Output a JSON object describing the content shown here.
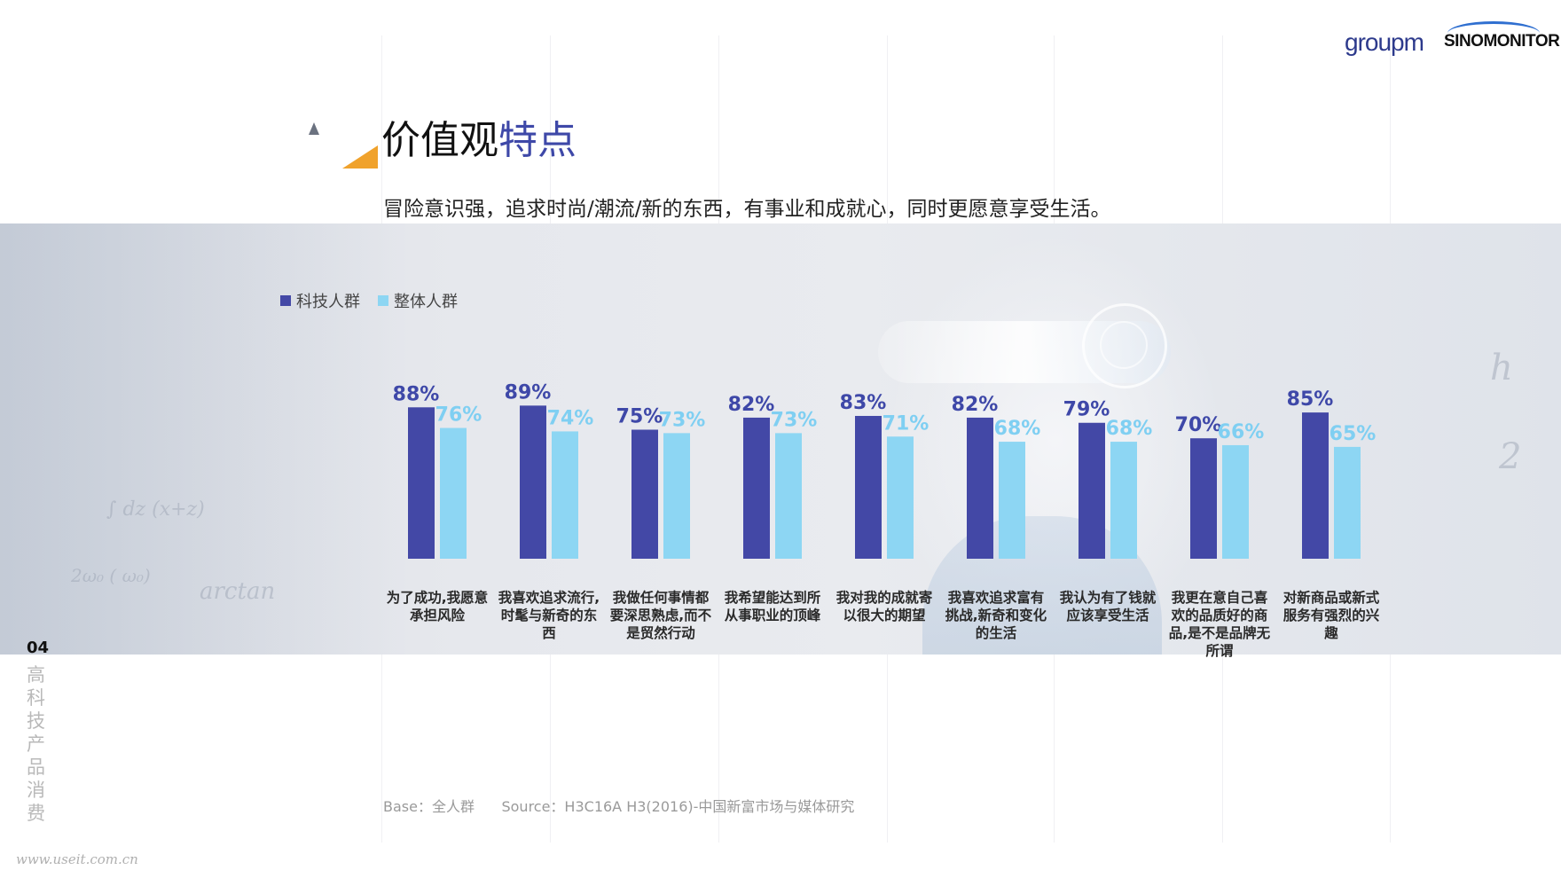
{
  "logos": {
    "groupm": "groupm",
    "sinomonitor": "SINOMONITOR"
  },
  "title": {
    "part1": "价值观",
    "part2": "特点"
  },
  "subtitle": "冒险意识强，追求时尚/潮流/新的东西，有事业和成就心，同时更愿意享受生活。",
  "page_number": "04",
  "section_label": "高科技产品消费",
  "source_note": "Base：全人群      Source：H3C16A H3(2016)-中国新富市场与媒体研究",
  "watermark_site": "www.useit.com.cn",
  "colors": {
    "tech": "#4348a6",
    "overall": "#8dd6f3",
    "title_accent": "#3e48a8",
    "deco_orange": "#f0a22c"
  },
  "chart_data": {
    "type": "bar",
    "categories": [
      "为了成功,我愿意承担风险",
      "我喜欢追求流行,时髦与新奇的东西",
      "我做任何事情都要深思熟虑,而不是贸然行动",
      "我希望能达到所从事职业的顶峰",
      "我对我的成就寄以很大的期望",
      "我喜欢追求富有挑战,新奇和变化的生活",
      "我认为有了钱就应该享受生活",
      "我更在意自己喜欢的品质好的商品,是不是品牌无所谓",
      "对新商品或新式服务有强烈的兴趣"
    ],
    "category_lines": [
      [
        "为了成功,我愿意",
        "承担风险"
      ],
      [
        "我喜欢追求流行,",
        "时髦与新奇的东",
        "西"
      ],
      [
        "我做任何事情都",
        "要深思熟虑,而不",
        "是贸然行动"
      ],
      [
        "我希望能达到所",
        "从事职业的顶峰"
      ],
      [
        "我对我的成就寄",
        "以很大的期望"
      ],
      [
        "我喜欢追求富有",
        "挑战,新奇和变化",
        "的生活"
      ],
      [
        "我认为有了钱就",
        "应该享受生活"
      ],
      [
        "我更在意自己喜",
        "欢的品质好的商",
        "品,是不是品牌无",
        "所谓"
      ],
      [
        "对新商品或新式",
        "服务有强烈的兴",
        "趣"
      ]
    ],
    "series": [
      {
        "name": "科技人群",
        "values": [
          88,
          89,
          75,
          82,
          83,
          82,
          79,
          70,
          85
        ]
      },
      {
        "name": "整体人群",
        "values": [
          76,
          74,
          73,
          73,
          71,
          68,
          68,
          66,
          65
        ]
      }
    ],
    "value_labels": {
      "科技人群": [
        "88%",
        "89%",
        "75%",
        "82%",
        "83%",
        "82%",
        "79%",
        "70%",
        "85%"
      ],
      "整体人群": [
        "76%",
        "74%",
        "73%",
        "73%",
        "71%",
        "68%",
        "68%",
        "66%",
        "65%"
      ]
    },
    "legend_position": "top-left",
    "grid": false
  }
}
